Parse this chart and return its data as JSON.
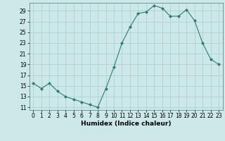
{
  "x": [
    0,
    1,
    2,
    3,
    4,
    5,
    6,
    7,
    8,
    9,
    10,
    11,
    12,
    13,
    14,
    15,
    16,
    17,
    18,
    19,
    20,
    21,
    22,
    23
  ],
  "y": [
    15.5,
    14.5,
    15.5,
    14.0,
    13.0,
    12.5,
    12.0,
    11.5,
    11.0,
    14.5,
    18.5,
    23.0,
    26.0,
    28.5,
    28.8,
    30.0,
    29.5,
    28.0,
    28.0,
    29.2,
    27.2,
    23.0,
    20.0,
    19.0
  ],
  "line_color": "#2e7d6e",
  "marker": "D",
  "marker_size": 2,
  "bg_color": "#cce8e8",
  "grid_color": "#aacece",
  "xlabel": "Humidex (Indice chaleur)",
  "xlim": [
    -0.5,
    23.5
  ],
  "ylim": [
    10.5,
    30.5
  ],
  "yticks": [
    11,
    13,
    15,
    17,
    19,
    21,
    23,
    25,
    27,
    29
  ],
  "xticks": [
    0,
    1,
    2,
    3,
    4,
    5,
    6,
    7,
    8,
    9,
    10,
    11,
    12,
    13,
    14,
    15,
    16,
    17,
    18,
    19,
    20,
    21,
    22,
    23
  ],
  "tick_fontsize": 5.5,
  "xlabel_fontsize": 6.5
}
